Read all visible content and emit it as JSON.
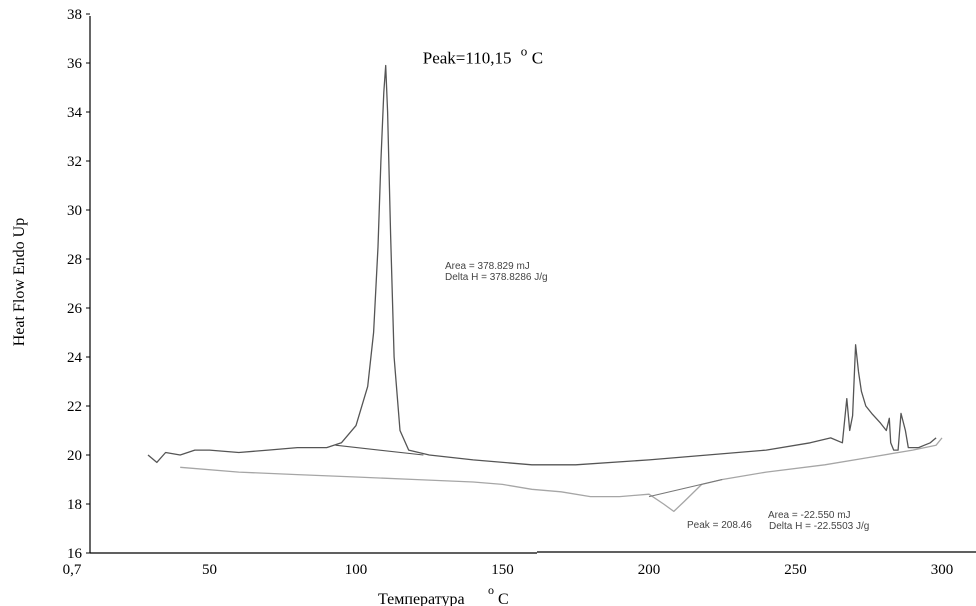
{
  "chart_data": {
    "type": "line",
    "title": "",
    "xlabel": "Температура",
    "xlabel_unit": "C",
    "ylabel": "Heat Flow Endo Up",
    "xlim": [
      0,
      300
    ],
    "ylim": [
      16,
      38
    ],
    "x_ticks": [
      "0,7",
      "50",
      "100",
      "150",
      "200",
      "250",
      "300"
    ],
    "x_tick_values": [
      0.7,
      50,
      100,
      150,
      200,
      250,
      300
    ],
    "y_ticks": [
      "16",
      "18",
      "20",
      "22",
      "24",
      "26",
      "28",
      "30",
      "32",
      "34",
      "36",
      "38"
    ],
    "y_tick_values": [
      16,
      18,
      20,
      22,
      24,
      26,
      28,
      30,
      32,
      34,
      36,
      38
    ],
    "grid": false,
    "series": [
      {
        "color": "#555555",
        "x": [
          29,
          32,
          35,
          40,
          45,
          50,
          60,
          70,
          80,
          90,
          95,
          100,
          104,
          106,
          107.5,
          108.5,
          109.5,
          110.15,
          110.8,
          111.8,
          113,
          115,
          118,
          125,
          140,
          160,
          175,
          200,
          220,
          240,
          255,
          262,
          266,
          267.5,
          268.5,
          269.5,
          270.5,
          271.5,
          272.5,
          274,
          276,
          279,
          281,
          282,
          282.5,
          283.5,
          285,
          286,
          287.5,
          288.5,
          290,
          292,
          294,
          296,
          297,
          298
        ],
        "y": [
          20.0,
          19.7,
          20.1,
          20.0,
          20.2,
          20.2,
          20.1,
          20.2,
          20.3,
          20.3,
          20.5,
          21.2,
          22.8,
          25.0,
          28.5,
          32.0,
          34.8,
          35.9,
          34.0,
          29.0,
          24.0,
          21.0,
          20.2,
          20.0,
          19.8,
          19.6,
          19.6,
          19.8,
          20.0,
          20.2,
          20.5,
          20.7,
          20.5,
          22.3,
          21.0,
          21.6,
          24.5,
          23.4,
          22.6,
          22.0,
          21.7,
          21.3,
          21.0,
          21.5,
          20.5,
          20.2,
          20.2,
          21.7,
          21.0,
          20.3,
          20.3,
          20.3,
          20.4,
          20.5,
          20.6,
          20.7
        ]
      },
      {
        "color": "#a6a6a6",
        "x": [
          40,
          60,
          80,
          100,
          120,
          140,
          150,
          160,
          170,
          180,
          190,
          200,
          205,
          208.46,
          212,
          218,
          225,
          240,
          260,
          275,
          290,
          298,
          300
        ],
        "y": [
          19.5,
          19.3,
          19.2,
          19.1,
          19.0,
          18.9,
          18.8,
          18.6,
          18.5,
          18.3,
          18.3,
          18.4,
          18.0,
          17.7,
          18.1,
          18.8,
          19.0,
          19.3,
          19.6,
          19.9,
          20.2,
          20.4,
          20.7
        ]
      }
    ],
    "baselines": [
      {
        "x": [
          93,
          123
        ],
        "y": [
          20.4,
          20.0
        ]
      },
      {
        "x": [
          200,
          225
        ],
        "y": [
          18.3,
          19.0
        ]
      }
    ],
    "annotations": [
      {
        "x": 110.15,
        "y": 35.9,
        "text": "Peak=110,15",
        "unit": "C"
      },
      {
        "x": 150,
        "y": 27.5,
        "lines": [
          "Area = 378.829 mJ",
          "Delta H = 378.8286 J/g"
        ]
      },
      {
        "x": 208.46,
        "y": 17.7,
        "text": "Peak = 208.46",
        "lines": [
          "Area = -22.550 mJ",
          "Delta H = -22.5503 J/g"
        ]
      }
    ]
  }
}
